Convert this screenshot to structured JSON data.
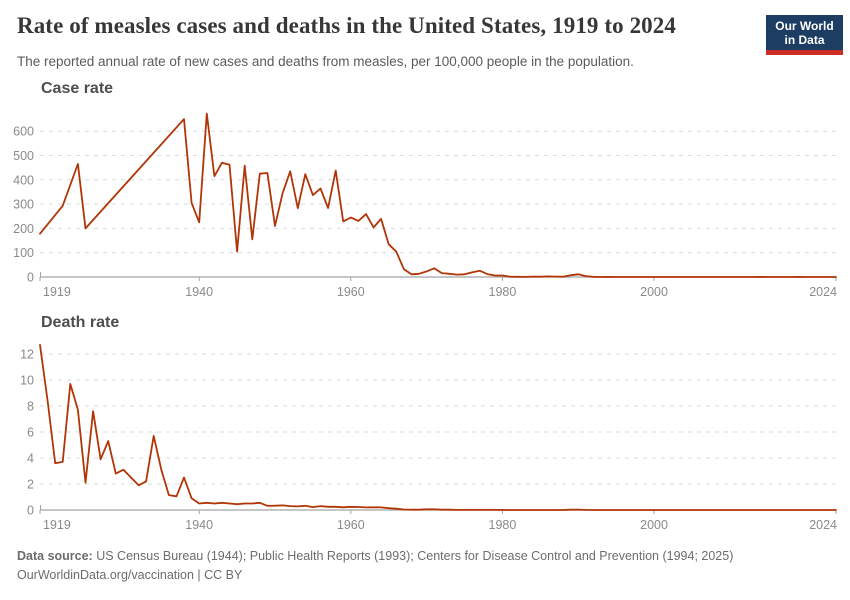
{
  "header": {
    "title": "Rate of measles cases and deaths in the United States, 1919 to 2024",
    "subtitle": "The reported annual rate of new cases and deaths from measles, per 100,000 people in the population.",
    "logo": {
      "line1": "Our World",
      "line2": "in Data"
    }
  },
  "footer": {
    "source_label": "Data source:",
    "source_text": "US Census Bureau (1944); Public Health Reports (1993); Centers for Disease Control and Prevention (1994; 2025)",
    "link": "OurWorldinData.org/vaccination",
    "separator": "|",
    "license": "CC BY"
  },
  "colors": {
    "line": "#b13507",
    "grid": "#dadada",
    "axis": "#a5a5a5",
    "tick_label": "#8a8a8a",
    "panel_title": "#4e4e4e",
    "title": "#383636",
    "subtitle": "#5b5b5b",
    "footer": "#6c6c6c",
    "logo_bg": "#1d3d63",
    "logo_accent": "#cb2d24",
    "logo_text": "#ffffff"
  },
  "chart_data": [
    {
      "type": "line",
      "title": "Case rate",
      "series_name": "Case rate",
      "unit": "per 100,000 people",
      "xlabel": "",
      "ylabel": "",
      "xlim": [
        1919,
        2024
      ],
      "ylim": [
        0,
        672
      ],
      "xticks": [
        1919,
        1940,
        1960,
        1980,
        2000,
        2024
      ],
      "yticks": [
        0,
        100,
        200,
        300,
        400,
        500,
        600
      ],
      "grid": true,
      "legend": "none",
      "x": [
        1919,
        1922,
        1924,
        1925,
        1938,
        1939,
        1940,
        1941,
        1942,
        1943,
        1944,
        1945,
        1946,
        1947,
        1948,
        1949,
        1950,
        1951,
        1952,
        1953,
        1954,
        1955,
        1956,
        1957,
        1958,
        1959,
        1960,
        1961,
        1962,
        1963,
        1964,
        1965,
        1966,
        1967,
        1968,
        1969,
        1970,
        1971,
        1972,
        1973,
        1974,
        1975,
        1976,
        1977,
        1978,
        1979,
        1980,
        1981,
        1982,
        1983,
        1984,
        1985,
        1986,
        1987,
        1988,
        1989,
        1990,
        1991,
        1992,
        1993,
        1994,
        1995,
        1996,
        1997,
        1998,
        1999,
        2000,
        2001,
        2002,
        2003,
        2004,
        2005,
        2006,
        2007,
        2008,
        2009,
        2010,
        2011,
        2012,
        2013,
        2014,
        2015,
        2016,
        2017,
        2018,
        2019,
        2020,
        2021,
        2022,
        2023,
        2024
      ],
      "y": [
        178,
        293,
        465,
        200,
        650,
        305,
        225,
        672,
        415,
        470,
        462,
        105,
        458,
        155,
        425,
        428,
        210,
        345,
        435,
        283,
        423,
        337,
        364,
        284,
        438,
        229,
        245,
        231,
        259,
        204,
        239,
        135,
        104,
        32,
        11,
        13,
        23,
        36,
        16,
        13,
        10,
        11,
        19,
        26,
        12,
        6,
        6,
        1.4,
        0.7,
        0.6,
        1.1,
        1.2,
        2.6,
        1.5,
        1.4,
        7.4,
        11.2,
        3.8,
        0.9,
        0.1,
        0.4,
        0.1,
        0.2,
        0.1,
        0.05,
        0.05,
        0.03,
        0.04,
        0.02,
        0.02,
        0.01,
        0.02,
        0.02,
        0.01,
        0.05,
        0.02,
        0.02,
        0.07,
        0.02,
        0.06,
        0.21,
        0.06,
        0.03,
        0.04,
        0.12,
        0.39,
        0.004,
        0.015,
        0.036,
        0.017,
        0.085
      ]
    },
    {
      "type": "line",
      "title": "Death rate",
      "series_name": "Death rate",
      "unit": "per 100,000 people",
      "xlabel": "",
      "ylabel": "",
      "xlim": [
        1919,
        2024
      ],
      "ylim": [
        0,
        12.7
      ],
      "xticks": [
        1919,
        1940,
        1960,
        1980,
        2000,
        2024
      ],
      "yticks": [
        0,
        2,
        4,
        6,
        8,
        10,
        12
      ],
      "grid": true,
      "legend": "none",
      "x": [
        1919,
        1920,
        1921,
        1922,
        1923,
        1924,
        1925,
        1926,
        1927,
        1928,
        1929,
        1930,
        1931,
        1932,
        1933,
        1934,
        1935,
        1936,
        1937,
        1938,
        1939,
        1940,
        1941,
        1942,
        1943,
        1944,
        1945,
        1946,
        1947,
        1948,
        1949,
        1950,
        1951,
        1952,
        1953,
        1954,
        1955,
        1956,
        1957,
        1958,
        1959,
        1960,
        1961,
        1962,
        1963,
        1964,
        1965,
        1966,
        1967,
        1968,
        1969,
        1970,
        1971,
        1972,
        1973,
        1974,
        1975,
        1976,
        1977,
        1978,
        1979,
        1980,
        1981,
        1982,
        1983,
        1984,
        1985,
        1986,
        1987,
        1988,
        1989,
        1990,
        1991,
        1992,
        1993,
        1994,
        1995,
        1996,
        1997,
        1998,
        1999,
        2000,
        2001,
        2002,
        2003,
        2004,
        2005,
        2006,
        2007,
        2008,
        2009,
        2010,
        2011,
        2012,
        2013,
        2014,
        2015,
        2016,
        2017,
        2018,
        2019,
        2020,
        2021,
        2022,
        2023,
        2024
      ],
      "y": [
        12.7,
        8.4,
        3.6,
        3.7,
        9.7,
        7.7,
        2.1,
        7.6,
        3.9,
        5.3,
        2.8,
        3.1,
        2.5,
        1.9,
        2.2,
        5.7,
        3.1,
        1.15,
        1.05,
        2.5,
        0.9,
        0.5,
        0.55,
        0.5,
        0.55,
        0.5,
        0.45,
        0.5,
        0.5,
        0.55,
        0.32,
        0.33,
        0.35,
        0.3,
        0.28,
        0.32,
        0.22,
        0.3,
        0.25,
        0.25,
        0.21,
        0.25,
        0.23,
        0.2,
        0.21,
        0.2,
        0.14,
        0.1,
        0.04,
        0.02,
        0.02,
        0.05,
        0.05,
        0.02,
        0.02,
        0.01,
        0.01,
        0.01,
        0.01,
        0.01,
        0.01,
        0.01,
        0,
        0,
        0,
        0,
        0,
        0,
        0,
        0,
        0.02,
        0.03,
        0.01,
        0,
        0,
        0,
        0,
        0,
        0,
        0,
        0,
        0,
        0,
        0,
        0,
        0,
        0,
        0,
        0,
        0,
        0,
        0,
        0,
        0,
        0,
        0,
        0,
        0,
        0,
        0,
        0,
        0,
        0,
        0,
        0,
        0
      ]
    }
  ]
}
